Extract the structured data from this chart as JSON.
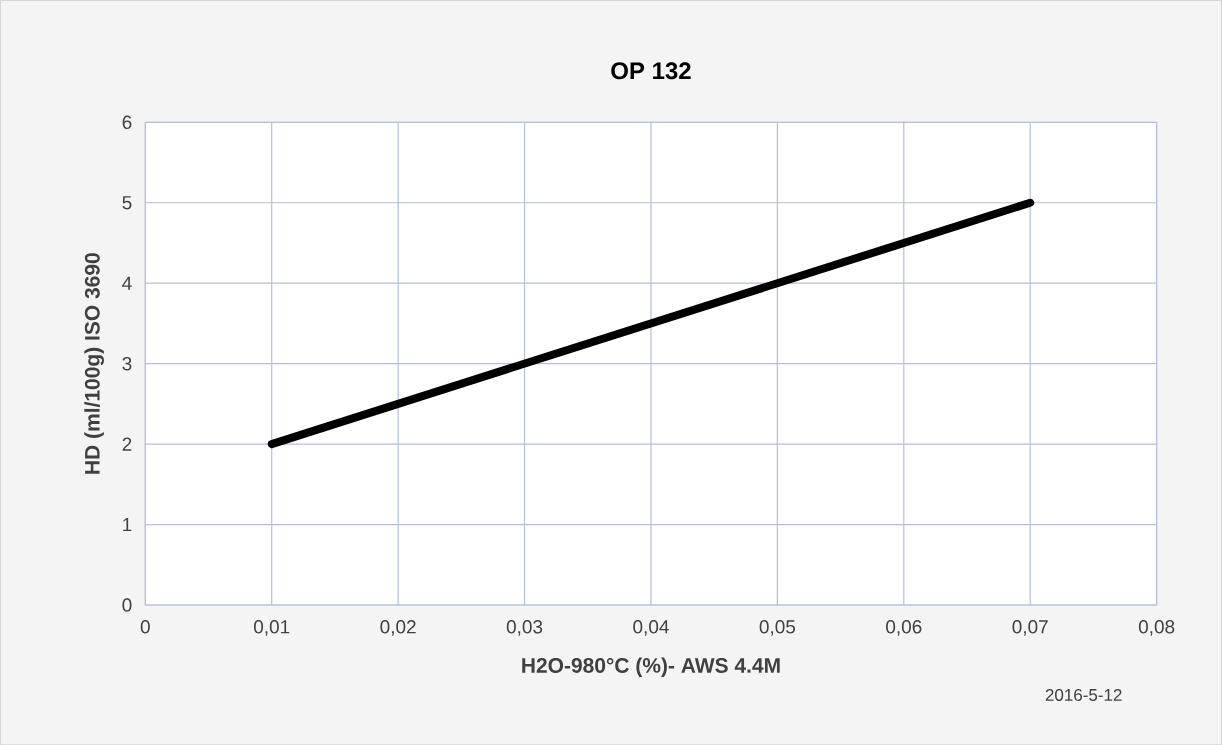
{
  "chart_data": {
    "type": "line",
    "title": "OP 132",
    "xlabel": "H2O-980°C (%)- AWS 4.4M",
    "ylabel": "HD (ml/100g) ISO 3690",
    "annotations": [
      "2016-5-12"
    ],
    "x": [
      0.01,
      0.07
    ],
    "series": [
      {
        "color": "#000000",
        "values": [
          2,
          5
        ]
      }
    ],
    "xlim": [
      0,
      0.08
    ],
    "xticks": [
      0,
      {
        "value": 0.01,
        "label": "0,01"
      },
      {
        "value": 0.02,
        "label": "0,02"
      },
      {
        "value": 0.03,
        "label": "0,03"
      },
      {
        "value": 0.04,
        "label": "0,04"
      },
      {
        "value": 0.05,
        "label": "0,05"
      },
      {
        "value": 0.06,
        "label": "0,06"
      },
      {
        "value": 0.07,
        "label": "0,07"
      },
      {
        "value": 0.08,
        "label": "0,08"
      }
    ],
    "ylim": [
      0,
      6
    ],
    "yticks": [
      0,
      1,
      2,
      3,
      4,
      5,
      6
    ],
    "grid": true,
    "marker": "none",
    "line_style": "solid"
  }
}
